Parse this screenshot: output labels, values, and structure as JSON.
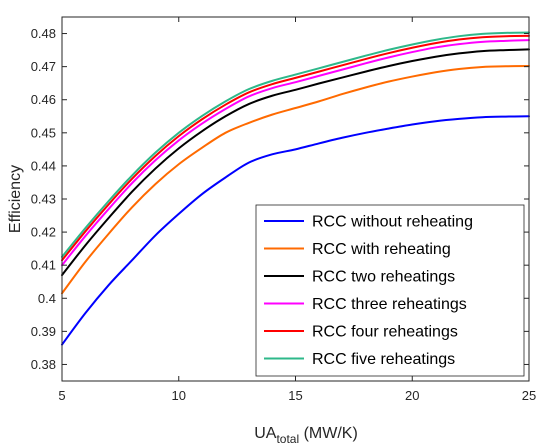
{
  "chart_data": {
    "type": "line",
    "xlabel": {
      "main": "UA",
      "sub": "total",
      "unit": " (MW/K)"
    },
    "ylabel": "Efficiency",
    "xlim": [
      5,
      25
    ],
    "ylim": [
      0.375,
      0.485
    ],
    "xticks": [
      5,
      10,
      15,
      20,
      25
    ],
    "yticks": [
      0.38,
      0.39,
      0.4,
      0.41,
      0.42,
      0.43,
      0.44,
      0.45,
      0.46,
      0.47,
      0.48
    ],
    "ytick_labels": [
      "0.38",
      "0.39",
      "0.4",
      "0.41",
      "0.42",
      "0.43",
      "0.44",
      "0.45",
      "0.46",
      "0.47",
      "0.48"
    ],
    "grid": false,
    "legend_position": "bottom-right",
    "x": [
      5,
      6,
      7,
      8,
      9,
      10,
      11,
      12,
      13,
      14,
      15,
      16,
      17,
      18,
      19,
      20,
      21,
      22,
      23,
      24,
      25
    ],
    "series": [
      {
        "name": "RCC without reheating",
        "color": "#0000ff",
        "values": [
          0.386,
          0.3955,
          0.404,
          0.4115,
          0.419,
          0.4255,
          0.4315,
          0.4365,
          0.441,
          0.4435,
          0.445,
          0.4468,
          0.4485,
          0.45,
          0.4513,
          0.4525,
          0.4535,
          0.4542,
          0.4547,
          0.4549,
          0.455
        ]
      },
      {
        "name": "RCC with reheating",
        "color": "#ff6a00",
        "values": [
          0.4015,
          0.411,
          0.4195,
          0.4275,
          0.4345,
          0.4405,
          0.4455,
          0.45,
          0.453,
          0.4555,
          0.4575,
          0.4595,
          0.4617,
          0.4637,
          0.4655,
          0.467,
          0.4683,
          0.4693,
          0.4699,
          0.4701,
          0.4702
        ]
      },
      {
        "name": "RCC two reheatings",
        "color": "#000000",
        "values": [
          0.407,
          0.416,
          0.4243,
          0.4322,
          0.4392,
          0.4453,
          0.4505,
          0.455,
          0.4587,
          0.4612,
          0.463,
          0.4649,
          0.4667,
          0.4685,
          0.4702,
          0.4717,
          0.473,
          0.474,
          0.4747,
          0.475,
          0.4752
        ]
      },
      {
        "name": "RCC three reheatings",
        "color": "#ff00ff",
        "values": [
          0.41,
          0.4188,
          0.427,
          0.4348,
          0.4417,
          0.4477,
          0.4528,
          0.4572,
          0.461,
          0.4635,
          0.4653,
          0.4672,
          0.4691,
          0.471,
          0.4728,
          0.4744,
          0.4758,
          0.4768,
          0.4775,
          0.4778,
          0.478
        ]
      },
      {
        "name": "RCC four reheatings",
        "color": "#ff0000",
        "values": [
          0.4115,
          0.4202,
          0.4284,
          0.4361,
          0.443,
          0.449,
          0.4541,
          0.4585,
          0.4622,
          0.4647,
          0.4666,
          0.4685,
          0.4704,
          0.4723,
          0.4741,
          0.4757,
          0.4771,
          0.4782,
          0.4789,
          0.4792,
          0.4793
        ]
      },
      {
        "name": "RCC five reheatings",
        "color": "#2eb88a",
        "values": [
          0.4125,
          0.4212,
          0.4294,
          0.4371,
          0.444,
          0.45,
          0.4551,
          0.4595,
          0.4632,
          0.4657,
          0.4676,
          0.4695,
          0.4714,
          0.4733,
          0.4751,
          0.4767,
          0.4781,
          0.4792,
          0.4799,
          0.4802,
          0.4803
        ]
      }
    ]
  }
}
